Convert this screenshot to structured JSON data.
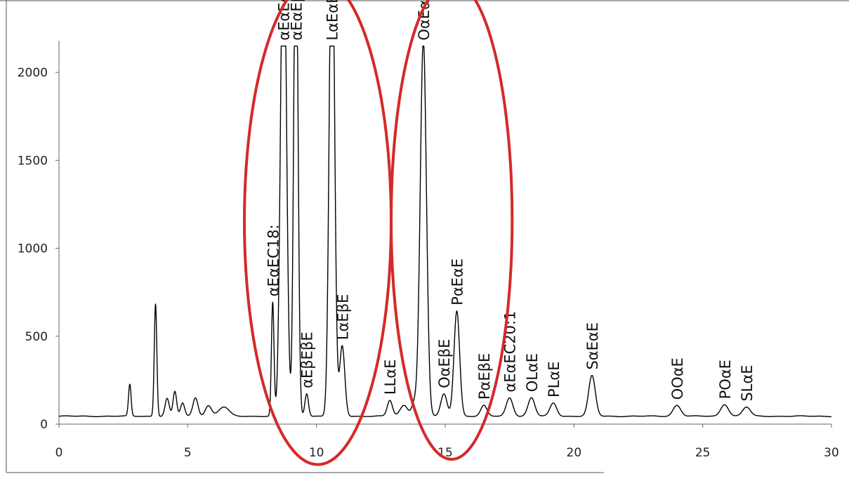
{
  "chart_data": {
    "type": "line",
    "title": "",
    "xlabel": "",
    "ylabel": "",
    "xlim": [
      0,
      30
    ],
    "ylim": [
      0,
      2300
    ],
    "x_ticks": [
      "0",
      "5",
      "10",
      "15",
      "20",
      "25",
      "30"
    ],
    "y_ticks": [
      "0",
      "500",
      "1000",
      "1500",
      "2000"
    ],
    "grid": false,
    "legend": "none",
    "line_color": "#000000",
    "highlight_color": "#d42a2a",
    "baseline": 45,
    "clip_max": 2150,
    "peaks": [
      {
        "x": 2.75,
        "height": 180,
        "width": 0.05
      },
      {
        "x": 3.75,
        "height": 640,
        "width": 0.05
      },
      {
        "x": 4.2,
        "height": 100,
        "width": 0.08
      },
      {
        "x": 4.5,
        "height": 140,
        "width": 0.07
      },
      {
        "x": 4.8,
        "height": 75,
        "width": 0.08
      },
      {
        "x": 5.3,
        "height": 105,
        "width": 0.1
      },
      {
        "x": 5.8,
        "height": 60,
        "width": 0.12
      },
      {
        "x": 6.4,
        "height": 52,
        "width": 0.2
      },
      {
        "x": 8.3,
        "height": 645,
        "width": 0.05,
        "label": "αEαEC18:"
      },
      {
        "x": 8.72,
        "height": 3000,
        "width": 0.11,
        "label": "αEαEαE"
      },
      {
        "x": 9.2,
        "height": 3000,
        "width": 0.08,
        "label": "αEαEβE"
      },
      {
        "x": 9.62,
        "height": 130,
        "width": 0.07,
        "label": "αEβEβE"
      },
      {
        "x": 10.6,
        "height": 3000,
        "width": 0.1,
        "label": "LαEαE"
      },
      {
        "x": 11.0,
        "height": 400,
        "width": 0.1,
        "label": "LαEβE"
      },
      {
        "x": 12.85,
        "height": 90,
        "width": 0.1,
        "label": "LLαE"
      },
      {
        "x": 13.4,
        "height": 62,
        "width": 0.15
      },
      {
        "x": 13.8,
        "height": 75,
        "width": 0.1
      },
      {
        "x": 14.15,
        "height": 2140,
        "width": 0.12,
        "label": "OαEαE"
      },
      {
        "x": 14.95,
        "height": 125,
        "width": 0.12,
        "label": "OαEβE"
      },
      {
        "x": 15.45,
        "height": 600,
        "width": 0.11,
        "label": "PαEαE"
      },
      {
        "x": 16.5,
        "height": 60,
        "width": 0.12,
        "label": "PαEβE"
      },
      {
        "x": 17.5,
        "height": 105,
        "width": 0.13,
        "label": "αEαEC20:1"
      },
      {
        "x": 18.35,
        "height": 105,
        "width": 0.13,
        "label": "OLαE"
      },
      {
        "x": 19.2,
        "height": 75,
        "width": 0.13,
        "label": "PLαE"
      },
      {
        "x": 20.7,
        "height": 230,
        "width": 0.13,
        "label": "SαEαE"
      },
      {
        "x": 24.0,
        "height": 62,
        "width": 0.15,
        "label": "OOαE"
      },
      {
        "x": 25.85,
        "height": 68,
        "width": 0.15,
        "label": "POαE"
      },
      {
        "x": 26.7,
        "height": 52,
        "width": 0.15,
        "label": "SLαE"
      }
    ],
    "highlighted_regions": [
      {
        "x_range": [
          7.2,
          12.9
        ],
        "y_range": [
          -230,
          2540
        ]
      },
      {
        "x_range": [
          12.9,
          17.6
        ],
        "y_range": [
          -200,
          2520
        ]
      }
    ]
  }
}
